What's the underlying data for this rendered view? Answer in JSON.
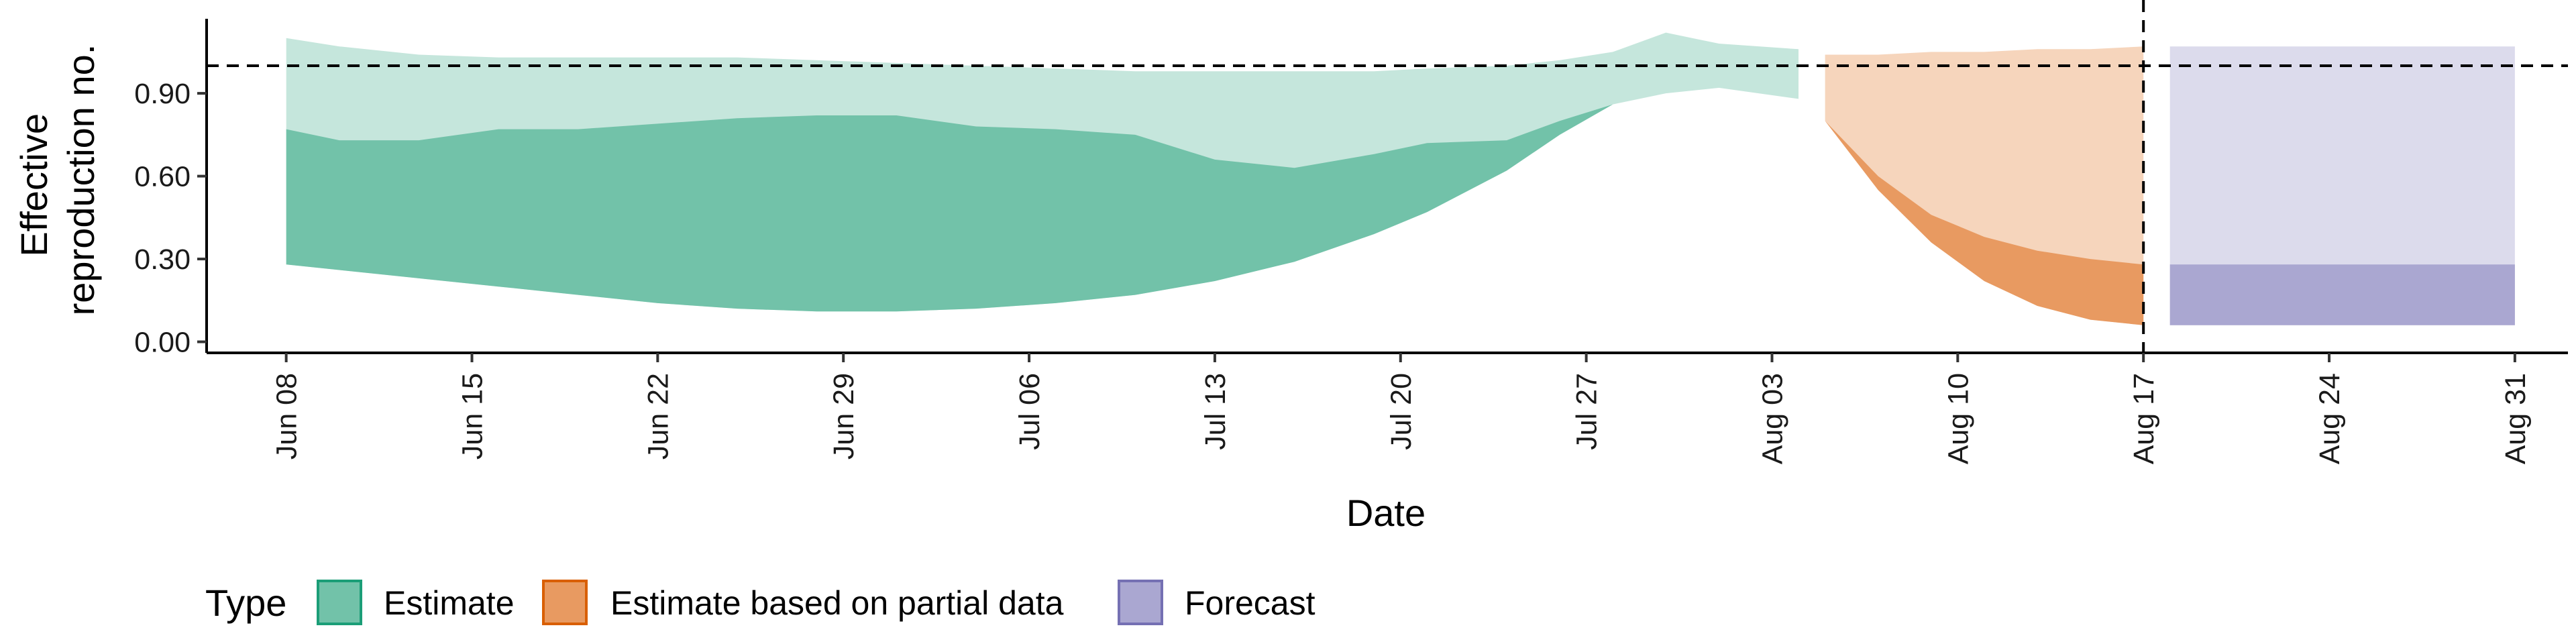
{
  "chart_data": {
    "type": "area",
    "xlabel": "Date",
    "ylabel": "Effective\nreproduction no.",
    "ylabel_lines": [
      "Effective",
      "reproduction no."
    ],
    "ylim": [
      -0.04,
      1.17
    ],
    "y_ticks": [
      0.0,
      0.3,
      0.6,
      0.9
    ],
    "y_tick_labels": [
      "0.00",
      "0.30",
      "0.60",
      "0.90"
    ],
    "x_range": [
      "2020-06-05",
      "2020-09-02"
    ],
    "x_tick_dates": [
      "2020-06-08",
      "2020-06-15",
      "2020-06-22",
      "2020-06-29",
      "2020-07-06",
      "2020-07-13",
      "2020-07-20",
      "2020-07-27",
      "2020-08-03",
      "2020-08-10",
      "2020-08-17",
      "2020-08-24",
      "2020-08-31"
    ],
    "x_tick_labels": [
      "Jun 08",
      "Jun 15",
      "Jun 22",
      "Jun 29",
      "Jul 06",
      "Jul 13",
      "Jul 20",
      "Jul 27",
      "Aug 03",
      "Aug 10",
      "Aug 17",
      "Aug 24",
      "Aug 31"
    ],
    "reference_line_y": 1.0,
    "vertical_line_x": "2020-08-17",
    "grid": false,
    "series": [
      {
        "name": "Estimate",
        "color": "#72c2a9",
        "color_light": "#c5e6dc",
        "x": [
          "2020-06-08",
          "2020-06-10",
          "2020-06-13",
          "2020-06-16",
          "2020-06-19",
          "2020-06-22",
          "2020-06-25",
          "2020-06-28",
          "2020-07-01",
          "2020-07-04",
          "2020-07-07",
          "2020-07-10",
          "2020-07-13",
          "2020-07-16",
          "2020-07-19",
          "2020-07-21",
          "2020-07-24",
          "2020-07-26",
          "2020-07-28",
          "2020-07-30",
          "2020-08-01",
          "2020-08-04"
        ],
        "lower_90": [
          0.28,
          0.26,
          0.23,
          0.2,
          0.17,
          0.14,
          0.12,
          0.11,
          0.11,
          0.12,
          0.14,
          0.17,
          0.22,
          0.29,
          0.39,
          0.47,
          0.62,
          0.75,
          0.86,
          0.9,
          0.92,
          0.88
        ],
        "lower_50": [
          0.28,
          0.26,
          0.23,
          0.2,
          0.17,
          0.14,
          0.12,
          0.11,
          0.11,
          0.12,
          0.14,
          0.17,
          0.22,
          0.29,
          0.39,
          0.47,
          0.62,
          0.75,
          0.86,
          0.9,
          0.92,
          0.88
        ],
        "upper_50": [
          0.77,
          0.73,
          0.73,
          0.77,
          0.77,
          0.79,
          0.81,
          0.82,
          0.82,
          0.78,
          0.77,
          0.75,
          0.66,
          0.63,
          0.68,
          0.72,
          0.73,
          0.8,
          0.86,
          0.9,
          0.92,
          0.88
        ],
        "upper_90": [
          1.1,
          1.07,
          1.04,
          1.03,
          1.03,
          1.03,
          1.03,
          1.02,
          1.01,
          1.0,
          0.99,
          0.98,
          0.98,
          0.98,
          0.98,
          0.99,
          1.0,
          1.02,
          1.05,
          1.12,
          1.08,
          1.06
        ]
      },
      {
        "name": "Estimate based on partial data",
        "color": "#e89a61",
        "color_light": "#f6d5bc",
        "x": [
          "2020-08-05",
          "2020-08-07",
          "2020-08-09",
          "2020-08-11",
          "2020-08-13",
          "2020-08-15",
          "2020-08-17"
        ],
        "lower_90": [
          0.8,
          0.55,
          0.36,
          0.22,
          0.13,
          0.08,
          0.06
        ],
        "lower_50": [
          0.8,
          0.55,
          0.36,
          0.22,
          0.13,
          0.08,
          0.06
        ],
        "upper_50": [
          0.8,
          0.6,
          0.46,
          0.38,
          0.33,
          0.3,
          0.28
        ],
        "upper_90": [
          1.04,
          1.04,
          1.05,
          1.05,
          1.06,
          1.06,
          1.07
        ]
      },
      {
        "name": "Forecast",
        "color": "#aaa7d1",
        "color_light": "#dcdbec",
        "x": [
          "2020-08-18",
          "2020-08-31"
        ],
        "lower_90": [
          0.06,
          0.06
        ],
        "lower_50": [
          0.06,
          0.06
        ],
        "upper_50": [
          0.28,
          0.28
        ],
        "upper_90": [
          1.07,
          1.07
        ]
      }
    ],
    "legend": {
      "title": "Type",
      "position": "bottom-left",
      "items": [
        {
          "label": "Estimate",
          "color": "#72c2a9",
          "border": "#1b9e77"
        },
        {
          "label": "Estimate based on partial data",
          "color": "#e89a61",
          "border": "#d95f02"
        },
        {
          "label": "Forecast",
          "color": "#aaa7d1",
          "border": "#7570b3"
        }
      ]
    }
  }
}
